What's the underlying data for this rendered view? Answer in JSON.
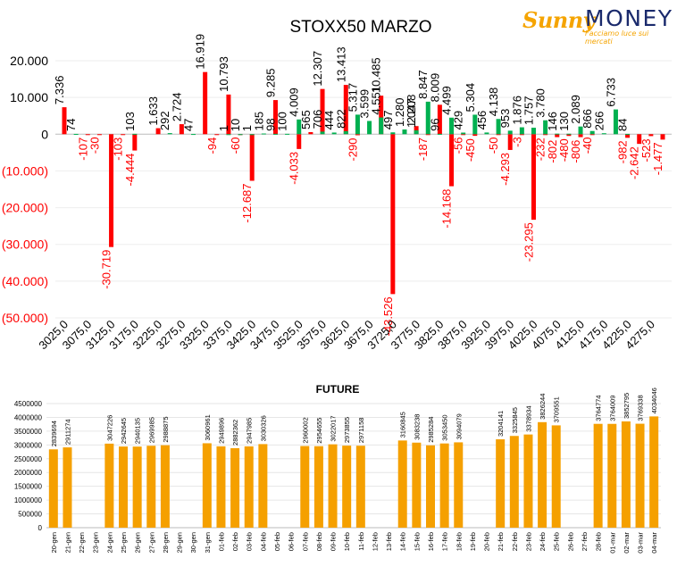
{
  "logo": {
    "brand_part1": "Sunny",
    "brand_part2": "MONEY",
    "tagline": "Facciamo luce sui mercati"
  },
  "colors": {
    "call": "#00b050",
    "put": "#ff0000",
    "future_bar": "#f5a000",
    "brand_orange": "#f5a400",
    "brand_navy": "#1a2a6c"
  },
  "chart_data": [
    {
      "type": "bar",
      "title": "STOXX50 MARZO",
      "ylim": [
        -50000,
        20000
      ],
      "y_ticks": [
        "(50.000)",
        "(40.000)",
        "(30.000)",
        "(20.000)",
        "(10.000)",
        "0",
        "10.000",
        "20.000"
      ],
      "x_tick_labels": [
        "3025,0",
        "3075,0",
        "3125,0",
        "3175,0",
        "3225,0",
        "3275,0",
        "3325,0",
        "3375,0",
        "3425,0",
        "3475,0",
        "3525,0",
        "3575,0",
        "3625,0",
        "3675,0",
        "3725,0",
        "3775,0",
        "3825,0",
        "3875,0",
        "3925,0",
        "3975,0",
        "4025,0",
        "4075,0",
        "4125,0",
        "4175,0",
        "4225,0",
        "4275,0"
      ],
      "strike_min": 3025,
      "strike_max": 4300,
      "series": [
        {
          "color": "#ff0000",
          "points": [
            {
              "x": 3025,
              "y": 7336,
              "label": "7.336"
            },
            {
              "x": 3075,
              "y": -107,
              "label": "-107"
            },
            {
              "x": 3100,
              "y": -30,
              "label": "-30"
            },
            {
              "x": 3125,
              "y": -30719,
              "label": "-30.719"
            },
            {
              "x": 3150,
              "y": -103,
              "label": "-103"
            },
            {
              "x": 3175,
              "y": -4444,
              "label": "-4.444"
            },
            {
              "x": 3225,
              "y": 1633,
              "label": "1.633"
            },
            {
              "x": 3275,
              "y": 2724,
              "label": "2.724"
            },
            {
              "x": 3325,
              "y": 16919,
              "label": "16.919"
            },
            {
              "x": 3350,
              "y": -94,
              "label": "-94"
            },
            {
              "x": 3375,
              "y": 10793,
              "label": "10.793"
            },
            {
              "x": 3400,
              "y": -60,
              "label": "-60"
            },
            {
              "x": 3425,
              "y": -12687,
              "label": "-12.687"
            },
            {
              "x": 3475,
              "y": 9285,
              "label": "9.285"
            },
            {
              "x": 3525,
              "y": -4033,
              "label": "-4.033"
            },
            {
              "x": 3550,
              "y": 565,
              "label": "565"
            },
            {
              "x": 3575,
              "y": 12307,
              "label": "12.307"
            },
            {
              "x": 3625,
              "y": 13413,
              "label": "13.413"
            },
            {
              "x": 3650,
              "y": -290,
              "label": "-290"
            },
            {
              "x": 3700,
              "y": 10485,
              "label": "10.485"
            },
            {
              "x": 3725,
              "y": -43526,
              "label": "-43.526"
            },
            {
              "x": 3775,
              "y": 2208,
              "label": "2.208"
            },
            {
              "x": 3800,
              "y": -187,
              "label": "-187"
            },
            {
              "x": 3825,
              "y": 8009,
              "label": "8.009"
            },
            {
              "x": 3850,
              "y": -14168,
              "label": "-14.168"
            },
            {
              "x": 3875,
              "y": -56,
              "label": "-56"
            },
            {
              "x": 3900,
              "y": -450,
              "label": "-450"
            },
            {
              "x": 3950,
              "y": -50,
              "label": "-50"
            },
            {
              "x": 3975,
              "y": -4293,
              "label": "-4.293"
            },
            {
              "x": 4000,
              "y": -3,
              "label": "-3"
            },
            {
              "x": 4025,
              "y": -23295,
              "label": "-23.295"
            },
            {
              "x": 4050,
              "y": -232,
              "label": "-232"
            },
            {
              "x": 4075,
              "y": -802,
              "label": "-802"
            },
            {
              "x": 4100,
              "y": -480,
              "label": "-480"
            },
            {
              "x": 4125,
              "y": -806,
              "label": "-806"
            },
            {
              "x": 4150,
              "y": -40,
              "label": "-40"
            },
            {
              "x": 4225,
              "y": -982,
              "label": "-982"
            },
            {
              "x": 4250,
              "y": -2642,
              "label": "-2.642"
            },
            {
              "x": 4275,
              "y": -523,
              "label": "-523"
            },
            {
              "x": 4300,
              "y": -1477,
              "label": "-1.477"
            }
          ]
        },
        {
          "color": "#00b050",
          "points": [
            {
              "x": 3050,
              "y": 74,
              "label": "74"
            },
            {
              "x": 3175,
              "y": 103,
              "label": "103"
            },
            {
              "x": 3250,
              "y": 292,
              "label": "292"
            },
            {
              "x": 3300,
              "y": 47,
              "label": "47"
            },
            {
              "x": 3375,
              "y": 1,
              "label": "1"
            },
            {
              "x": 3400,
              "y": 10,
              "label": "10"
            },
            {
              "x": 3425,
              "y": 1,
              "label": "1"
            },
            {
              "x": 3450,
              "y": 185,
              "label": "185"
            },
            {
              "x": 3475,
              "y": 98,
              "label": "98"
            },
            {
              "x": 3500,
              "y": 100,
              "label": "100"
            },
            {
              "x": 3525,
              "y": 4009,
              "label": "4.009"
            },
            {
              "x": 3575,
              "y": 706,
              "label": "706"
            },
            {
              "x": 3600,
              "y": 444,
              "label": "444"
            },
            {
              "x": 3625,
              "y": 822,
              "label": "822"
            },
            {
              "x": 3650,
              "y": 5317,
              "label": "5.317"
            },
            {
              "x": 3675,
              "y": 3599,
              "label": "3.599"
            },
            {
              "x": 3700,
              "y": 4551,
              "label": "4.551"
            },
            {
              "x": 3725,
              "y": 497,
              "label": "497"
            },
            {
              "x": 3750,
              "y": 1280,
              "label": "1.280"
            },
            {
              "x": 3775,
              "y": 1047,
              "label": "1.047"
            },
            {
              "x": 3800,
              "y": 8847,
              "label": "8.847"
            },
            {
              "x": 3825,
              "y": 96,
              "label": "96"
            },
            {
              "x": 3850,
              "y": 4499,
              "label": "4.499"
            },
            {
              "x": 3875,
              "y": 429,
              "label": "429"
            },
            {
              "x": 3900,
              "y": 5304,
              "label": "5.304"
            },
            {
              "x": 3925,
              "y": 456,
              "label": "456"
            },
            {
              "x": 3950,
              "y": 4138,
              "label": "4.138"
            },
            {
              "x": 3975,
              "y": 953,
              "label": "953"
            },
            {
              "x": 4000,
              "y": 1876,
              "label": "1.876"
            },
            {
              "x": 4025,
              "y": 1757,
              "label": "1.757"
            },
            {
              "x": 4050,
              "y": 3780,
              "label": "3.780"
            },
            {
              "x": 4075,
              "y": 146,
              "label": "146"
            },
            {
              "x": 4100,
              "y": 130,
              "label": "130"
            },
            {
              "x": 4125,
              "y": 2089,
              "label": "2.089"
            },
            {
              "x": 4150,
              "y": 866,
              "label": "866"
            },
            {
              "x": 4175,
              "y": 266,
              "label": "266"
            },
            {
              "x": 4200,
              "y": 6733,
              "label": "6.733"
            },
            {
              "x": 4225,
              "y": 84,
              "label": "84"
            }
          ]
        }
      ]
    },
    {
      "type": "bar",
      "title": "FUTURE",
      "ylim": [
        0,
        4500000
      ],
      "y_ticks": [
        "0",
        "500000",
        "1000000",
        "1500000",
        "2000000",
        "2500000",
        "3000000",
        "3500000",
        "4000000",
        "4500000"
      ],
      "categories": [
        "20-gen",
        "21-gen",
        "22-gen",
        "23-gen",
        "24-gen",
        "25-gen",
        "26-gen",
        "27-gen",
        "28-gen",
        "29-gen",
        "30-gen",
        "31-gen",
        "01-feb",
        "02-feb",
        "03-feb",
        "04-feb",
        "05-feb",
        "06-feb",
        "07-feb",
        "08-feb",
        "09-feb",
        "10-feb",
        "11-feb",
        "12-feb",
        "13-feb",
        "14-feb",
        "15-feb",
        "16-feb",
        "17-feb",
        "18-feb",
        "19-feb",
        "20-feb",
        "21-feb",
        "22-feb",
        "23-feb",
        "24-feb",
        "25-feb",
        "26-feb",
        "27-feb",
        "28-feb",
        "01-mar",
        "02-mar",
        "03-mar",
        "04-mar"
      ],
      "values": [
        2839694,
        2911274,
        null,
        null,
        3047226,
        2942645,
        2940135,
        2969985,
        2988875,
        null,
        null,
        3060961,
        2949896,
        2882362,
        2947985,
        3030326,
        null,
        null,
        2960002,
        2954655,
        3022017,
        2973855,
        2971158,
        null,
        null,
        3160845,
        3083238,
        2985284,
        3053450,
        3094079,
        null,
        null,
        3204141,
        3325845,
        3378934,
        3826244,
        3709551,
        null,
        null,
        3764774,
        3764009,
        3852795,
        3769338,
        4034046
      ],
      "value_labels": [
        "2839694",
        "2911274",
        "",
        "",
        "3047226",
        "2942645",
        "2940135",
        "2969985",
        "2988875",
        "",
        "",
        "3060961",
        "2949896",
        "2882362",
        "2947985",
        "3030326",
        "",
        "",
        "2960002",
        "2954655",
        "3022017",
        "2973855",
        "2971158",
        "",
        "",
        "3160845",
        "3083238",
        "2985284",
        "3053450",
        "3094079",
        "",
        "",
        "3204141",
        "3325845",
        "3378934",
        "3826244",
        "3709551",
        "",
        "",
        "3764774",
        "3764009",
        "3852795",
        "3769338",
        "4034046"
      ]
    }
  ]
}
